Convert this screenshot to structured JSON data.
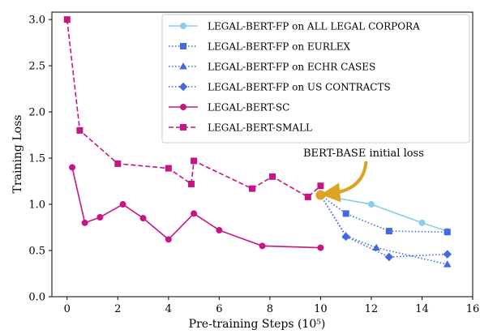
{
  "chart_data": {
    "type": "line",
    "xlabel": "Pre-training Steps (10⁵)",
    "ylabel": "Training Loss",
    "xlim": [
      -0.6,
      16
    ],
    "ylim": [
      0.0,
      3.08
    ],
    "xticks": [
      "0",
      "2",
      "4",
      "6",
      "8",
      "10",
      "12",
      "14",
      "16"
    ],
    "xtick_values": [
      0,
      2,
      4,
      6,
      8,
      10,
      12,
      14,
      16
    ],
    "yticks": [
      "0.0",
      "0.5",
      "1.0",
      "1.5",
      "2.0",
      "2.5",
      "3.0"
    ],
    "ytick_values": [
      0.0,
      0.5,
      1.0,
      1.5,
      2.0,
      2.5,
      3.0
    ],
    "grid": false,
    "legend_position": "top-right",
    "series": [
      {
        "name": "LEGAL-BERT-FP on ALL LEGAL CORPORA",
        "color": "#87ceeb",
        "line_style": "solid",
        "marker": "circle",
        "x": [
          10,
          12,
          14,
          15
        ],
        "y": [
          1.1,
          1.0,
          0.8,
          0.71
        ]
      },
      {
        "name": "LEGAL-BERT-FP on EURLEX",
        "color": "#4169e1",
        "line_style": "dotted",
        "marker": "square",
        "x": [
          10,
          11,
          12.7,
          15
        ],
        "y": [
          1.1,
          0.9,
          0.71,
          0.7
        ]
      },
      {
        "name": "LEGAL-BERT-FP on ECHR CASES",
        "color": "#4169e1",
        "line_style": "dotted",
        "marker": "triangle",
        "x": [
          10,
          11,
          12.2,
          15
        ],
        "y": [
          1.1,
          0.66,
          0.53,
          0.35
        ]
      },
      {
        "name": "LEGAL-BERT-FP on US CONTRACTS",
        "color": "#4169e1",
        "line_style": "dotted",
        "marker": "diamond",
        "x": [
          10,
          11,
          12.7,
          15
        ],
        "y": [
          1.1,
          0.65,
          0.43,
          0.46
        ]
      },
      {
        "name": "LEGAL-BERT-SC",
        "color": "#c71585",
        "line_style": "solid",
        "marker": "circle",
        "x": [
          0.2,
          0.7,
          1.3,
          2.2,
          3.0,
          4.0,
          5.0,
          6.0,
          7.7,
          10.0
        ],
        "y": [
          1.4,
          0.8,
          0.86,
          1.0,
          0.85,
          0.62,
          0.9,
          0.72,
          0.55,
          0.53
        ]
      },
      {
        "name": "LEGAL-BERT-SMALL",
        "color": "#c71585",
        "line_style": "dashed",
        "marker": "square",
        "x": [
          0.0,
          0.5,
          2.0,
          4.0,
          4.9,
          5.0,
          7.3,
          8.1,
          9.5,
          10.0
        ],
        "y": [
          3.0,
          1.8,
          1.44,
          1.39,
          1.22,
          1.47,
          1.17,
          1.3,
          1.08,
          1.2
        ]
      }
    ],
    "annotation": {
      "text": "BERT-BASE initial loss",
      "x": 10,
      "y": 1.1,
      "color": "#daa520"
    }
  }
}
